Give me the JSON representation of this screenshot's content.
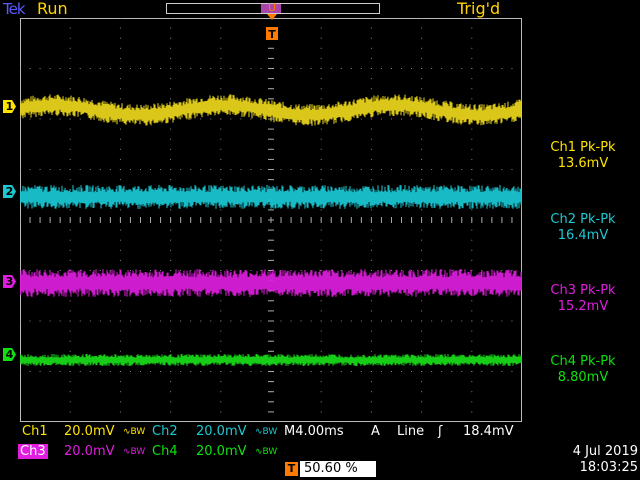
{
  "top": {
    "brand": "Tek",
    "run_state": "Run",
    "trigger_state": "Trig'd"
  },
  "channels": [
    {
      "id": "1",
      "color": "#ffe400",
      "trace_color": "#e6d21a"
    },
    {
      "id": "2",
      "color": "#1ec8d2",
      "trace_color": "#19c5d0"
    },
    {
      "id": "3",
      "color": "#e01ee0",
      "trace_color": "#d81ed8"
    },
    {
      "id": "4",
      "color": "#10e010",
      "trace_color": "#18d818"
    }
  ],
  "measurements": [
    {
      "label": "Ch1 Pk-Pk",
      "value": "13.6mV",
      "color": "#ffe400"
    },
    {
      "label": "Ch2 Pk-Pk",
      "value": "16.4mV",
      "color": "#1ec8d2"
    },
    {
      "label": "Ch3 Pk-Pk",
      "value": "15.2mV",
      "color": "#e01ee0"
    },
    {
      "label": "Ch4 Pk-Pk",
      "value": "8.80mV",
      "color": "#10e010"
    }
  ],
  "settings": {
    "ch1": {
      "label": "Ch1",
      "scale": "20.0mV",
      "coupling": "∿BW"
    },
    "ch2": {
      "label": "Ch2",
      "scale": "20.0mV",
      "coupling": "∿BW"
    },
    "ch3": {
      "label": "Ch3",
      "scale": "20.0mV",
      "coupling": "∿BW"
    },
    "ch4": {
      "label": "Ch4",
      "scale": "20.0mV",
      "coupling": "∿BW"
    },
    "timebase": "M4.00ms",
    "trigger_mode": "A",
    "trigger_source": "Line",
    "trigger_slope_icon": "rising-edge-icon",
    "trigger_slope_glyph": "ʃ",
    "trigger_level": "18.4mV",
    "trigger_marker": "T",
    "trigger_position": "50.60 %"
  },
  "timestamp": {
    "date": "4 Jul  2019",
    "time": "18:03:25"
  }
}
